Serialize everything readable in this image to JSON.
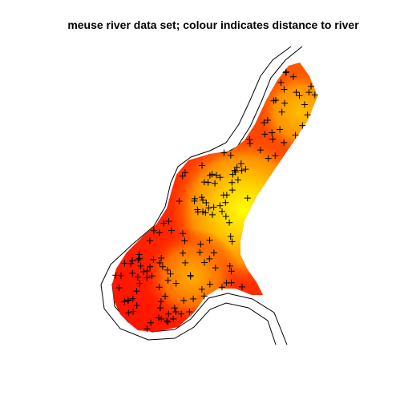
{
  "chart_data": {
    "type": "heatmap",
    "title": "meuse river data set; colour indicates distance to river",
    "color_scale": {
      "name": "heat",
      "low": "#ff0000",
      "mid": "#ff8000",
      "high": "#ffff00",
      "meaning_low": "close to river",
      "meaning_high": "far from river"
    },
    "grid": false,
    "axes_visible": false,
    "points": {
      "marker": "plus",
      "count": 155
    }
  }
}
